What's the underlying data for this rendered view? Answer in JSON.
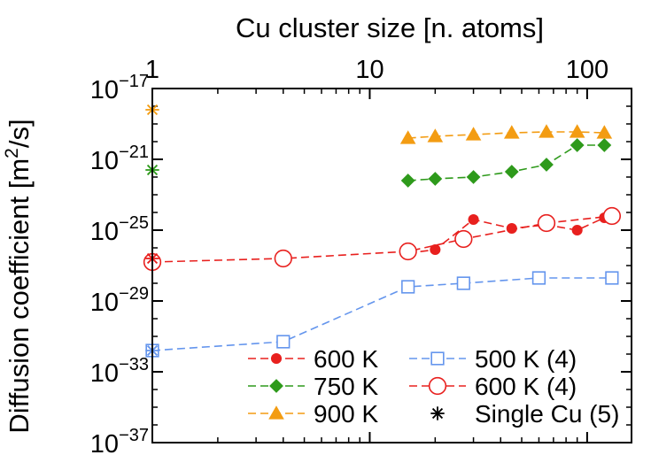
{
  "chart_data": {
    "type": "scatter",
    "title": "",
    "x_axis": {
      "label": "Cu cluster size [n. atoms]",
      "position": "top",
      "scale": "log",
      "range": [
        1,
        160
      ],
      "ticks": [
        {
          "value": 1,
          "label": "1"
        },
        {
          "value": 10,
          "label": "10"
        },
        {
          "value": 100,
          "label": "100"
        }
      ]
    },
    "y_axis": {
      "label_prefix": "Diffusion coefficient [m",
      "label_sup": "2",
      "label_suffix": "/s]",
      "scale": "log",
      "range_exponent": [
        -37,
        -17
      ],
      "ticks": [
        {
          "exp": -17,
          "base": "10",
          "sup": "−17"
        },
        {
          "exp": -21,
          "base": "10",
          "sup": "−21"
        },
        {
          "exp": -25,
          "base": "10",
          "sup": "−25"
        },
        {
          "exp": -29,
          "base": "10",
          "sup": "−29"
        },
        {
          "exp": -33,
          "base": "10",
          "sup": "−33"
        },
        {
          "exp": -37,
          "base": "10",
          "sup": "−37"
        }
      ]
    },
    "grid": false,
    "legend_position": "bottom-right",
    "series": [
      {
        "name": "600 K",
        "color": "#e8201e",
        "marker": "filled-circle",
        "line": "dashed",
        "points": [
          [
            15,
            -26.3
          ],
          [
            20,
            -26.1
          ],
          [
            30,
            -24.4
          ],
          [
            45,
            -24.9
          ],
          [
            65,
            -24.7
          ],
          [
            90,
            -25.0
          ],
          [
            120,
            -24.3
          ]
        ]
      },
      {
        "name": "750 K",
        "color": "#2e9a1b",
        "marker": "filled-diamond",
        "line": "dashed",
        "points": [
          [
            15,
            -22.2
          ],
          [
            20,
            -22.1
          ],
          [
            30,
            -22.0
          ],
          [
            45,
            -21.7
          ],
          [
            65,
            -21.3
          ],
          [
            90,
            -20.2
          ],
          [
            120,
            -20.2
          ]
        ]
      },
      {
        "name": "900 K",
        "color": "#f39c12",
        "marker": "filled-triangle",
        "line": "dashed",
        "points": [
          [
            15,
            -19.8
          ],
          [
            20,
            -19.7
          ],
          [
            30,
            -19.6
          ],
          [
            45,
            -19.5
          ],
          [
            65,
            -19.45
          ],
          [
            90,
            -19.45
          ],
          [
            120,
            -19.5
          ]
        ]
      },
      {
        "name": "500 K (4)",
        "color": "#6495ed",
        "marker": "open-square",
        "line": "dashed",
        "points": [
          [
            1,
            -31.8
          ],
          [
            4,
            -31.3
          ],
          [
            15,
            -28.2
          ],
          [
            27,
            -28.0
          ],
          [
            60,
            -27.7
          ],
          [
            130,
            -27.7
          ]
        ]
      },
      {
        "name": "600 K (4)",
        "color": "#e8201e",
        "marker": "open-circle",
        "line": "dashed",
        "points": [
          [
            1,
            -26.8
          ],
          [
            4,
            -26.6
          ],
          [
            15,
            -26.2
          ],
          [
            27,
            -25.5
          ],
          [
            65,
            -24.6
          ],
          [
            130,
            -24.2
          ]
        ]
      },
      {
        "name": "Single Cu (5)",
        "color": "#000000",
        "marker": "asterisk",
        "line": "none",
        "points": [
          [
            1,
            -18.2
          ],
          [
            1,
            -21.6
          ],
          [
            1,
            -26.6
          ],
          [
            1,
            -31.8
          ]
        ],
        "point_colors": [
          "#f39c12",
          "#2e9a1b",
          "#e8201e",
          "#6495ed"
        ]
      }
    ]
  }
}
